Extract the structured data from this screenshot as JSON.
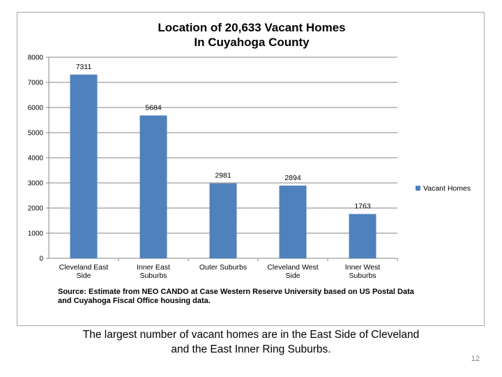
{
  "chart_data": {
    "type": "bar",
    "title": [
      "Location of 20,633 Vacant Homes",
      "In Cuyahoga County"
    ],
    "categories": [
      [
        "Cleveland East",
        "Side"
      ],
      [
        "Inner East",
        "Suburbs"
      ],
      [
        "Outer Suburbs"
      ],
      [
        "Cleveland West",
        "Side"
      ],
      [
        "Inner West",
        "Suburbs"
      ]
    ],
    "series": [
      {
        "name": "Vacant Homes",
        "values": [
          7311,
          5684,
          2981,
          2894,
          1763
        ],
        "color": "#4f81bd"
      }
    ],
    "data_labels": [
      "7311",
      "5684",
      "2981",
      "2894",
      "1763"
    ],
    "y_ticks": [
      "0",
      "1000",
      "2000",
      "3000",
      "4000",
      "5000",
      "6000",
      "7000",
      "8000"
    ],
    "ylim": [
      0,
      8000
    ],
    "xlabel": "",
    "ylabel": "",
    "grid": true,
    "legend_position": "right",
    "source": [
      "Source:  Estimate from NEO CANDO at Case Western Reserve University based on US Postal Data",
      "and Cuyahoga Fiscal Office housing data."
    ]
  },
  "caption": [
    "The largest number of vacant homes are in the East Side of Cleveland",
    "and the East Inner Ring Suburbs."
  ],
  "page_number": "12"
}
